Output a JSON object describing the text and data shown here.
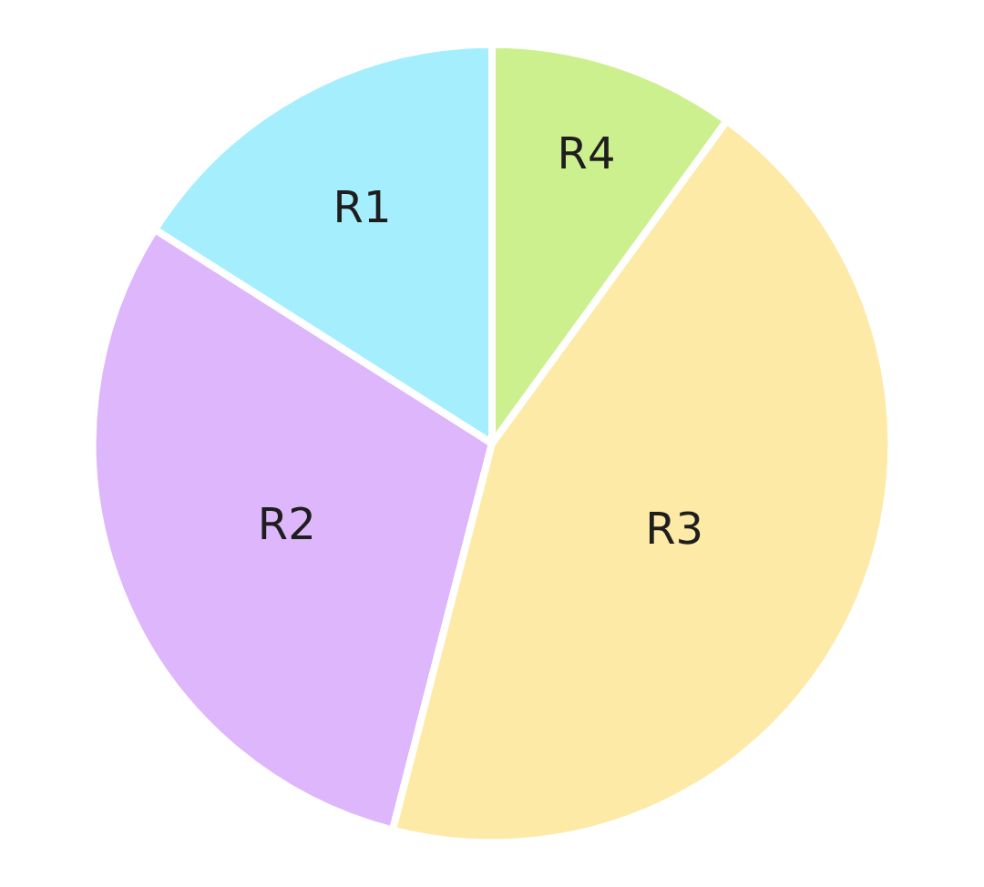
{
  "chart_data": {
    "type": "pie",
    "categories": [
      "R1",
      "R2",
      "R3",
      "R4"
    ],
    "values": [
      16,
      30,
      44,
      10
    ],
    "colors": [
      "#a5eefd",
      "#ddb6fb",
      "#fdeaa6",
      "#cdf08e"
    ],
    "legend": false
  }
}
